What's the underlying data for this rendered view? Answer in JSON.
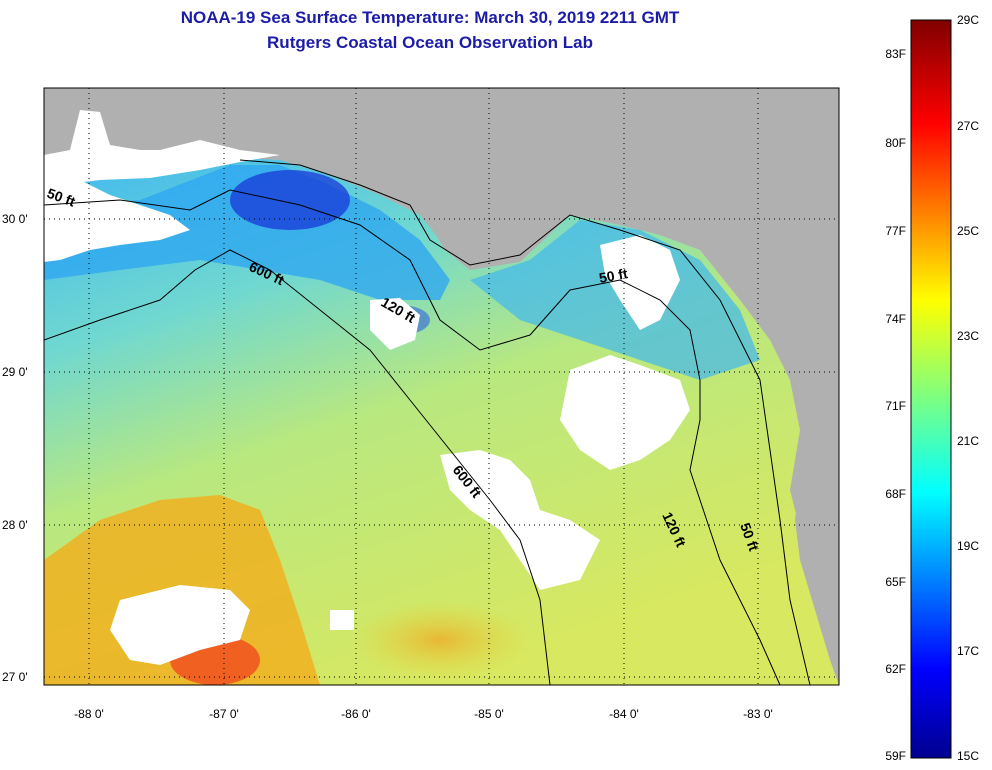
{
  "header": {
    "title": "NOAA-19 Sea Surface Temperature:  March 30, 2019 2211 GMT",
    "subtitle": "Rutgers Coastal Ocean Observation Lab"
  },
  "map": {
    "lon_ticks": [
      "-88 0'",
      "-87 0'",
      "-86 0'",
      "-85 0'",
      "-84 0'",
      "-83 0'"
    ],
    "lat_ticks": [
      "30 0'",
      "29 0'",
      "28 0'",
      "27 0'"
    ],
    "lon_range": [
      -88.35,
      -82.6
    ],
    "lat_range": [
      26.96,
      30.85
    ],
    "contour_labels": [
      "50 ft",
      "600 ft",
      "120 ft",
      "50 ft",
      "600 ft",
      "120 ft",
      "50 ft"
    ],
    "colors": {
      "land": "#b0b0b0",
      "cloud": "#ffffff",
      "grid": "#000000"
    }
  },
  "colorbar": {
    "fahrenheit_labels": [
      "83F",
      "80F",
      "77F",
      "74F",
      "71F",
      "68F",
      "65F",
      "62F",
      "59F"
    ],
    "celsius_labels": [
      "29C",
      "27C",
      "25C",
      "23C",
      "21C",
      "19C",
      "17C",
      "15C"
    ],
    "range_c": [
      15,
      29
    ],
    "colormap": "jet"
  }
}
